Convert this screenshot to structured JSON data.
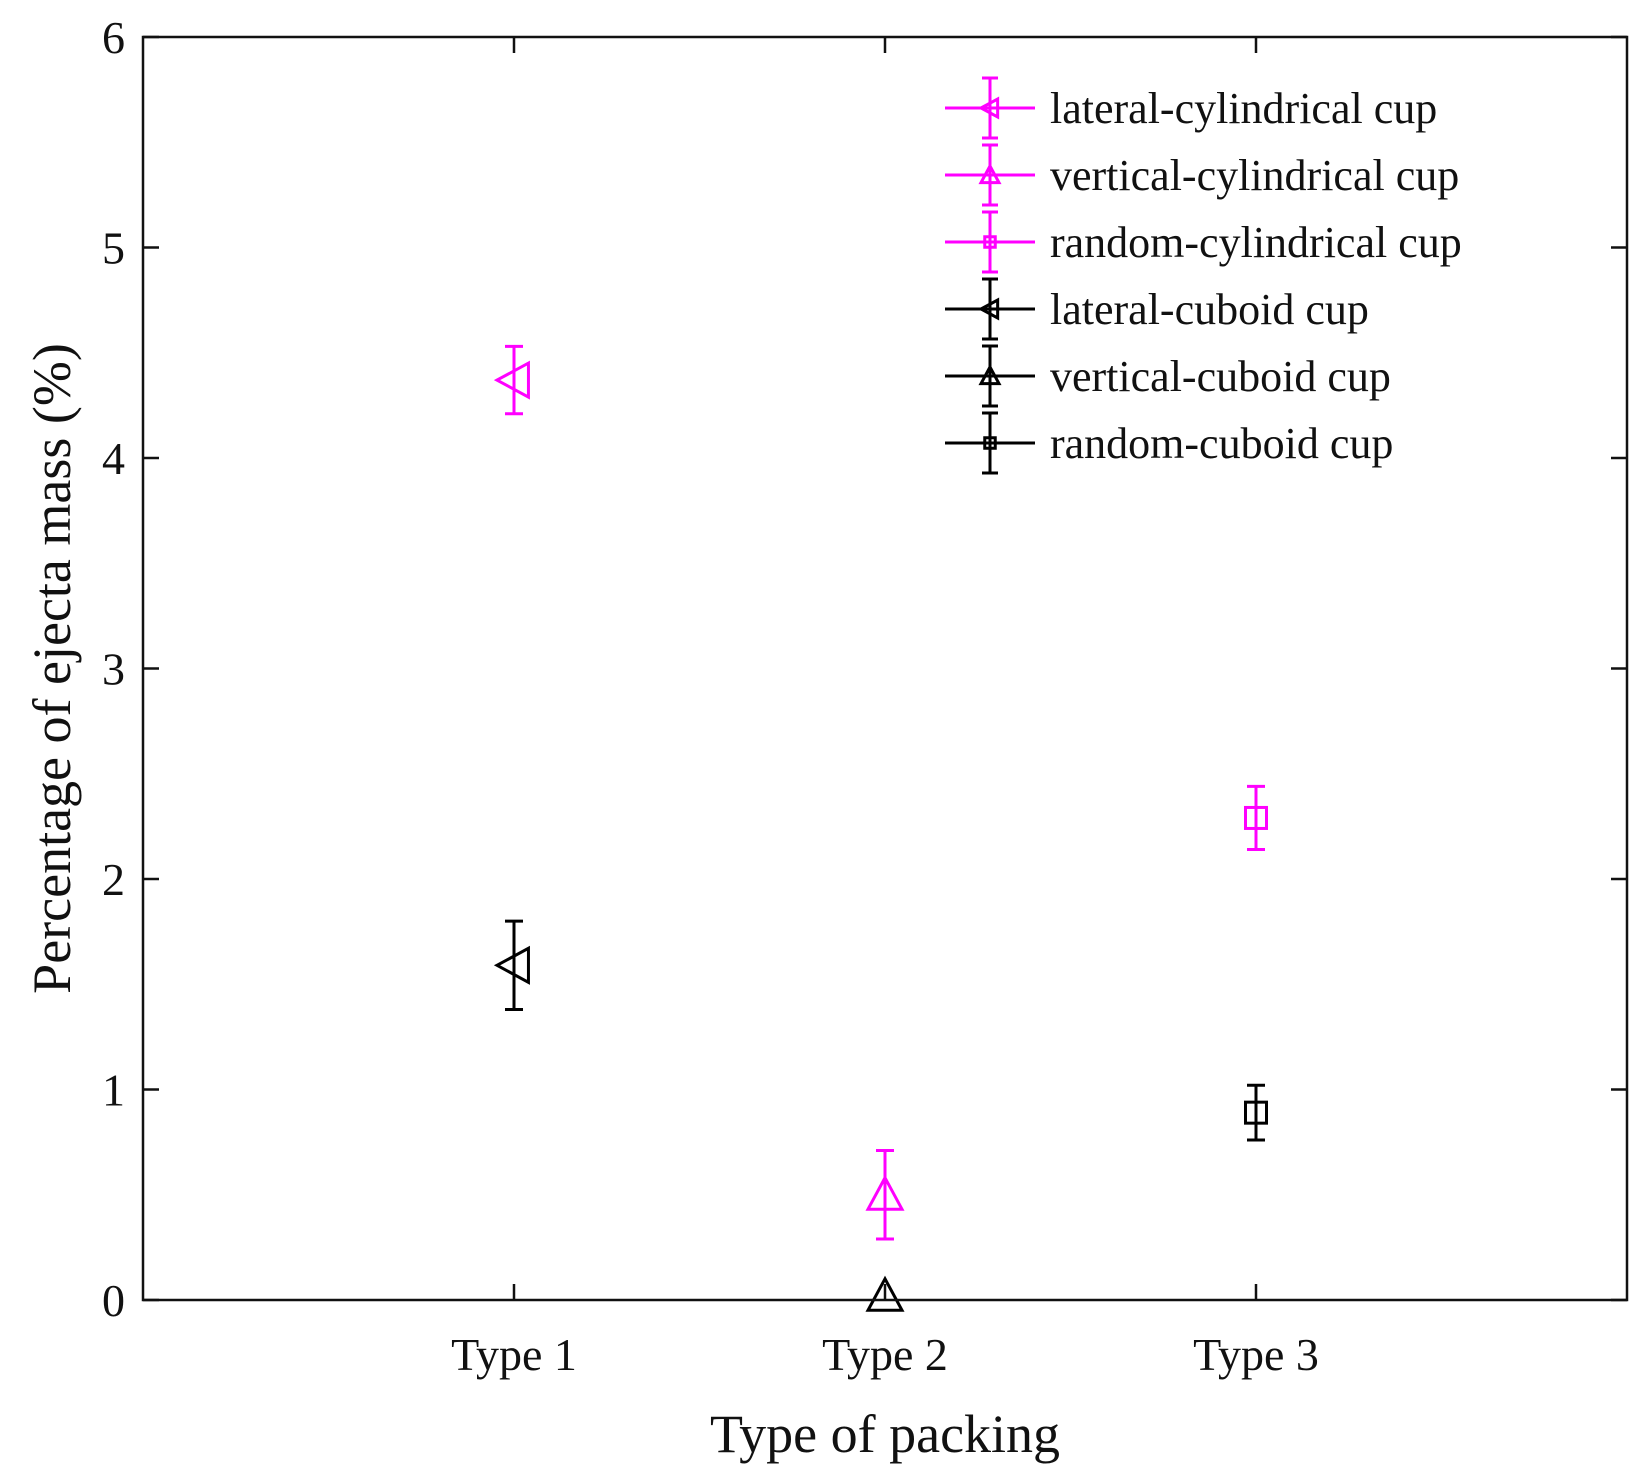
{
  "chart_data": {
    "type": "errorbar-scatter",
    "xlabel": "Type of packing",
    "ylabel": "Percentage of ejecta mass (%)",
    "ylim": [
      0,
      6
    ],
    "yticks": [
      0,
      1,
      2,
      3,
      4,
      5,
      6
    ],
    "categories": [
      "Type 1",
      "Type 2",
      "Type 3"
    ],
    "x_range": [
      0,
      4
    ],
    "legend_position": "top-right",
    "series": [
      {
        "name": "lateral-cylindrical cup",
        "color": "#ff00ff",
        "marker": "triangle-left",
        "category": "Type 1",
        "value": 4.37,
        "error": 0.16
      },
      {
        "name": "vertical-cylindrical cup",
        "color": "#ff00ff",
        "marker": "triangle-up",
        "category": "Type 2",
        "value": 0.5,
        "error": 0.21
      },
      {
        "name": "random-cylindrical cup",
        "color": "#ff00ff",
        "marker": "square",
        "category": "Type 3",
        "value": 2.29,
        "error": 0.15
      },
      {
        "name": "lateral-cuboid cup",
        "color": "#000000",
        "marker": "triangle-left",
        "category": "Type 1",
        "value": 1.59,
        "error": 0.21
      },
      {
        "name": "vertical-cuboid cup",
        "color": "#000000",
        "marker": "triangle-up",
        "category": "Type 2",
        "value": 0.02,
        "error": 0.0
      },
      {
        "name": "random-cuboid cup",
        "color": "#000000",
        "marker": "square",
        "category": "Type 3",
        "value": 0.89,
        "error": 0.13
      }
    ]
  }
}
